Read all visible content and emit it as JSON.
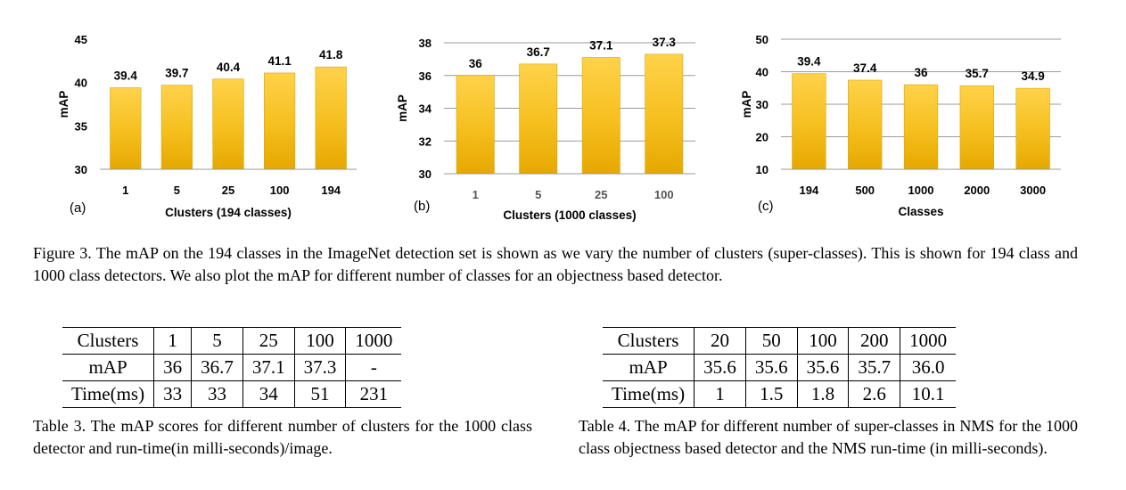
{
  "figure": {
    "caption": "Figure 3. The mAP on the 194 classes in the ImageNet detection set is shown as we vary the number of clusters (super-classes). This is shown for 194 class and 1000 class detectors. We also plot the mAP for different number of classes for an objectness based detector."
  },
  "chart_data": [
    {
      "type": "bar",
      "panel": "(a)",
      "categories": [
        "1",
        "5",
        "25",
        "100",
        "194"
      ],
      "values": [
        39.4,
        39.7,
        40.4,
        41.1,
        41.8
      ],
      "xlabel": "Clusters (194 classes)",
      "ylabel": "mAP",
      "ylim": [
        30,
        45
      ],
      "yticks": [
        "30",
        "35",
        "40",
        "45"
      ],
      "grid": false,
      "bar_color": "#f5bf1e"
    },
    {
      "type": "bar",
      "panel": "(b)",
      "categories": [
        "1",
        "5",
        "25",
        "100"
      ],
      "values": [
        36,
        36.7,
        37.1,
        37.3
      ],
      "xlabel": "Clusters (1000 classes)",
      "ylabel": "mAP",
      "ylim": [
        30,
        38
      ],
      "yticks": [
        "30",
        "32",
        "34",
        "36",
        "38"
      ],
      "grid": true,
      "bar_color": "#f5bf1e"
    },
    {
      "type": "bar",
      "panel": "(c)",
      "categories": [
        "194",
        "500",
        "1000",
        "2000",
        "3000"
      ],
      "values": [
        39.4,
        37.4,
        36,
        35.7,
        34.9
      ],
      "xlabel": "Classes",
      "ylabel": "mAP",
      "ylim": [
        10,
        50
      ],
      "yticks": [
        "10",
        "20",
        "30",
        "40",
        "50"
      ],
      "grid": true,
      "bar_color": "#f5bf1e"
    }
  ],
  "table3": {
    "rows": [
      [
        "Clusters",
        "1",
        "5",
        "25",
        "100",
        "1000"
      ],
      [
        "mAP",
        "36",
        "36.7",
        "37.1",
        "37.3",
        "-"
      ],
      [
        "Time(ms)",
        "33",
        "33",
        "34",
        "51",
        "231"
      ]
    ],
    "caption": "Table 3. The mAP scores for different number of clusters for the 1000 class detector and run-time(in milli-seconds)/image."
  },
  "table4": {
    "rows": [
      [
        "Clusters",
        "20",
        "50",
        "100",
        "200",
        "1000"
      ],
      [
        "mAP",
        "35.6",
        "35.6",
        "35.6",
        "35.7",
        "36.0"
      ],
      [
        "Time(ms)",
        "1",
        "1.5",
        "1.8",
        "2.6",
        "10.1"
      ]
    ],
    "caption": "Table 4. The mAP for different number of super-classes in NMS for the 1000 class objectness based detector and the NMS run-time (in milli-seconds)."
  }
}
